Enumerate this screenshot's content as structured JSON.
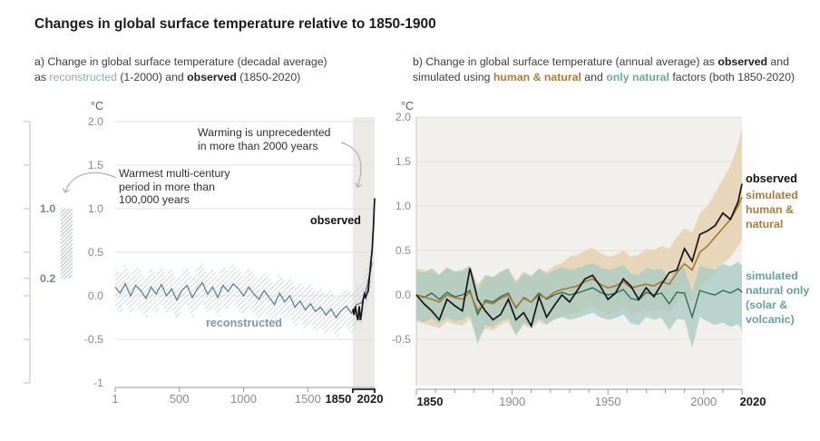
{
  "header": {
    "title": "Changes in global surface temperature relative to 1850-1900"
  },
  "panel_a": {
    "subtitle_line1": "a) Change in global surface temperature (decadal average)",
    "subtitle_line2_pre": "as ",
    "subtitle_reconstructed": "reconstructed",
    "subtitle_mid": " (1-2000) and ",
    "subtitle_observed": "observed",
    "subtitle_post": " (1850-2020)",
    "unit": "°C",
    "annotation_unprecedented_line1": "Warming is unprecedented",
    "annotation_unprecedented_line2": "in more than 2000 years",
    "annotation_warmest_line1": "Warmest multi-century",
    "annotation_warmest_line2": "period in more than",
    "annotation_warmest_line3": "100,000 years",
    "label_observed": "observed",
    "label_reconstructed": "reconstructed",
    "mini_axis_label_top": "1.0",
    "mini_axis_label_bottom": "0.2"
  },
  "panel_b": {
    "subtitle_line1_pre": "b) Change in global surface temperature (annual average) as ",
    "subtitle_observed": "observed",
    "subtitle_line1_post": " and",
    "subtitle_line2_pre": "simulated using ",
    "subtitle_human_natural": "human & natural",
    "subtitle_mid": " and ",
    "subtitle_only_natural": "only natural",
    "subtitle_post": " factors (both 1850-2020)",
    "unit": "°C",
    "legend_observed": "observed",
    "legend_human_natural": "simulated human & natural",
    "legend_natural_only": "simulated natural only (solar & volcanic)"
  },
  "colors": {
    "observed": "#141414",
    "reconstructed_line": "#5d7f95",
    "reconstructed_hatch": "#b7c6d1",
    "human_natural_line": "#a9772c",
    "human_natural_band": "#e7d3b6",
    "natural_line": "#2f6b60",
    "natural_band": "#a7c9c2",
    "panel_b_bg": "#f2f0ec",
    "gridline": "#e2dfda",
    "highlight_band": "#eceae7",
    "axis": "#979797",
    "tick_label": "#8a8a8a",
    "bold_year": "#1a1a1a",
    "mini_axis": "#c3cdd6",
    "arrow": "#b0b0b0"
  },
  "chart_data": [
    {
      "type": "line",
      "panel": "a",
      "title": "Change in global surface temperature (decadal average) as reconstructed (1-2000) and observed (1850-2020)",
      "ylabel": "°C",
      "xlim": [
        1,
        2020
      ],
      "ylim": [
        -1.05,
        2.05
      ],
      "grid": true,
      "x_ticks": [
        1,
        500,
        1000,
        1500,
        1850,
        2020
      ],
      "x_ticks_bold": [
        1850,
        2020
      ],
      "y_ticks": [
        2.0,
        1.5,
        1.0,
        0.5,
        0.0,
        -0.5,
        -1
      ],
      "grid_values": [
        2.0,
        1.5,
        1.0,
        0.5,
        0.0,
        -0.5
      ],
      "highlight_span": [
        1850,
        2020
      ],
      "bracket_span": [
        1850,
        2020
      ],
      "mini_axis": {
        "ticks": [
          2.0,
          1.5,
          1.0,
          0.5,
          0.2,
          0.0,
          -0.5,
          -1
        ],
        "bar_range": [
          0.2,
          1.0
        ],
        "labeled_ticks": [
          1.0,
          0.2
        ]
      },
      "series": [
        {
          "name": "reconstructed",
          "band_halfwidth": 0.23,
          "x": [
            1,
            40,
            80,
            120,
            160,
            200,
            240,
            280,
            320,
            360,
            400,
            440,
            480,
            520,
            560,
            600,
            640,
            680,
            720,
            760,
            800,
            840,
            880,
            920,
            960,
            1000,
            1040,
            1080,
            1120,
            1160,
            1200,
            1240,
            1280,
            1320,
            1360,
            1400,
            1440,
            1480,
            1520,
            1560,
            1600,
            1640,
            1680,
            1720,
            1760,
            1800,
            1840,
            1880,
            1920,
            1960,
            2000
          ],
          "y": [
            0.1,
            0.03,
            0.14,
            0.0,
            0.12,
            0.06,
            -0.03,
            0.1,
            0.02,
            0.13,
            0.0,
            0.08,
            -0.05,
            0.06,
            0.12,
            -0.02,
            0.08,
            0.15,
            0.02,
            0.1,
            -0.02,
            0.12,
            0.05,
            0.14,
            0.08,
            0.0,
            0.1,
            0.02,
            -0.04,
            0.06,
            -0.02,
            -0.1,
            0.03,
            -0.07,
            0.0,
            -0.13,
            -0.06,
            -0.16,
            -0.09,
            -0.18,
            -0.13,
            -0.22,
            -0.15,
            -0.25,
            -0.17,
            -0.12,
            -0.2,
            -0.1,
            -0.08,
            0.1,
            0.38
          ]
        },
        {
          "name": "observed",
          "x": [
            1850,
            1860,
            1870,
            1880,
            1890,
            1900,
            1910,
            1920,
            1930,
            1940,
            1950,
            1960,
            1970,
            1980,
            1990,
            2000,
            2010,
            2020
          ],
          "y": [
            -0.15,
            -0.22,
            -0.12,
            -0.22,
            -0.28,
            -0.12,
            -0.28,
            -0.18,
            -0.05,
            0.02,
            -0.02,
            0.03,
            0.05,
            0.22,
            0.38,
            0.52,
            0.78,
            1.12
          ]
        }
      ]
    },
    {
      "type": "line",
      "panel": "b",
      "title": "Change in global surface temperature (annual average) as observed and simulated using human & natural and only natural factors (both 1850-2020)",
      "ylabel": "°C",
      "xlim": [
        1850,
        2020
      ],
      "ylim": [
        -1.0,
        2.05
      ],
      "grid": true,
      "legend_position": "right",
      "x_ticks_labeled": [
        1850,
        1900,
        1950,
        2000,
        2020
      ],
      "x_ticks_bold": [
        1850,
        2020
      ],
      "x_minor_step": 10,
      "y_ticks": [
        2.0,
        1.5,
        1.0,
        0.5,
        0.0,
        -0.5
      ],
      "x": [
        1850,
        1854,
        1858,
        1862,
        1866,
        1870,
        1874,
        1878,
        1882,
        1886,
        1890,
        1894,
        1898,
        1902,
        1906,
        1910,
        1914,
        1918,
        1922,
        1926,
        1930,
        1934,
        1938,
        1942,
        1946,
        1950,
        1954,
        1958,
        1962,
        1966,
        1970,
        1974,
        1978,
        1982,
        1986,
        1990,
        1994,
        1998,
        2002,
        2006,
        2010,
        2014,
        2018,
        2020
      ],
      "series": [
        {
          "name": "observed",
          "y": [
            0.0,
            -0.1,
            -0.18,
            -0.28,
            -0.05,
            -0.12,
            -0.18,
            0.3,
            -0.05,
            -0.18,
            -0.28,
            -0.22,
            -0.05,
            -0.28,
            -0.2,
            -0.35,
            -0.02,
            -0.25,
            -0.12,
            0.0,
            -0.08,
            0.05,
            0.18,
            0.22,
            0.1,
            -0.05,
            0.02,
            0.18,
            0.1,
            -0.05,
            0.08,
            -0.02,
            0.12,
            0.25,
            0.28,
            0.52,
            0.38,
            0.68,
            0.72,
            0.78,
            0.92,
            0.85,
            1.05,
            1.25
          ]
        },
        {
          "name": "simulated human & natural",
          "y": [
            0.0,
            -0.02,
            -0.05,
            -0.08,
            0.0,
            -0.03,
            -0.05,
            0.03,
            -0.18,
            -0.08,
            -0.1,
            -0.04,
            0.0,
            -0.14,
            -0.04,
            -0.08,
            0.0,
            -0.04,
            0.03,
            0.06,
            0.08,
            0.1,
            0.15,
            0.18,
            0.12,
            0.08,
            0.1,
            0.15,
            0.08,
            0.1,
            0.12,
            0.1,
            0.15,
            0.12,
            0.25,
            0.35,
            0.28,
            0.48,
            0.55,
            0.65,
            0.75,
            0.85,
            1.0,
            1.1
          ],
          "upper": [
            0.3,
            0.28,
            0.25,
            0.22,
            0.3,
            0.27,
            0.25,
            0.33,
            0.12,
            0.22,
            0.2,
            0.26,
            0.3,
            0.16,
            0.26,
            0.22,
            0.3,
            0.26,
            0.33,
            0.36,
            0.43,
            0.45,
            0.5,
            0.53,
            0.47,
            0.43,
            0.45,
            0.5,
            0.43,
            0.45,
            0.52,
            0.5,
            0.55,
            0.52,
            0.65,
            0.75,
            0.7,
            0.92,
            1.0,
            1.15,
            1.3,
            1.45,
            1.7,
            1.88
          ],
          "lower": [
            -0.3,
            -0.32,
            -0.35,
            -0.38,
            -0.3,
            -0.33,
            -0.35,
            -0.27,
            -0.5,
            -0.38,
            -0.4,
            -0.34,
            -0.3,
            -0.46,
            -0.34,
            -0.38,
            -0.3,
            -0.34,
            -0.27,
            -0.24,
            -0.22,
            -0.2,
            -0.15,
            -0.12,
            -0.18,
            -0.22,
            -0.2,
            -0.15,
            -0.22,
            -0.2,
            -0.18,
            -0.2,
            -0.15,
            -0.2,
            -0.08,
            0.0,
            -0.08,
            0.1,
            0.15,
            0.25,
            0.35,
            0.42,
            0.55,
            0.62
          ]
        },
        {
          "name": "simulated natural only (solar & volcanic)",
          "y": [
            0.0,
            -0.03,
            0.02,
            -0.05,
            0.03,
            -0.02,
            0.0,
            0.05,
            -0.22,
            -0.06,
            -0.08,
            -0.02,
            0.02,
            -0.15,
            -0.03,
            -0.08,
            0.02,
            -0.05,
            0.0,
            0.03,
            0.0,
            0.02,
            0.05,
            0.08,
            0.03,
            0.0,
            0.02,
            0.06,
            -0.04,
            -0.06,
            0.03,
            0.0,
            0.02,
            -0.1,
            0.03,
            0.02,
            -0.25,
            0.05,
            0.02,
            0.0,
            0.05,
            0.02,
            0.07,
            0.03
          ],
          "upper": [
            0.28,
            0.25,
            0.3,
            0.23,
            0.31,
            0.26,
            0.28,
            0.33,
            0.06,
            0.22,
            0.2,
            0.26,
            0.3,
            0.13,
            0.25,
            0.2,
            0.3,
            0.23,
            0.28,
            0.31,
            0.28,
            0.3,
            0.33,
            0.36,
            0.31,
            0.28,
            0.3,
            0.34,
            0.24,
            0.22,
            0.31,
            0.28,
            0.3,
            0.18,
            0.31,
            0.3,
            0.03,
            0.33,
            0.3,
            0.28,
            0.35,
            0.32,
            0.37,
            0.33
          ],
          "lower": [
            -0.28,
            -0.31,
            -0.26,
            -0.33,
            -0.25,
            -0.3,
            -0.28,
            -0.23,
            -0.55,
            -0.34,
            -0.36,
            -0.3,
            -0.26,
            -0.45,
            -0.31,
            -0.36,
            -0.26,
            -0.33,
            -0.28,
            -0.25,
            -0.28,
            -0.26,
            -0.23,
            -0.2,
            -0.25,
            -0.28,
            -0.26,
            -0.22,
            -0.32,
            -0.34,
            -0.25,
            -0.28,
            -0.26,
            -0.4,
            -0.27,
            -0.28,
            -0.6,
            -0.25,
            -0.3,
            -0.34,
            -0.31,
            -0.36,
            -0.33,
            -0.4
          ]
        }
      ]
    }
  ]
}
